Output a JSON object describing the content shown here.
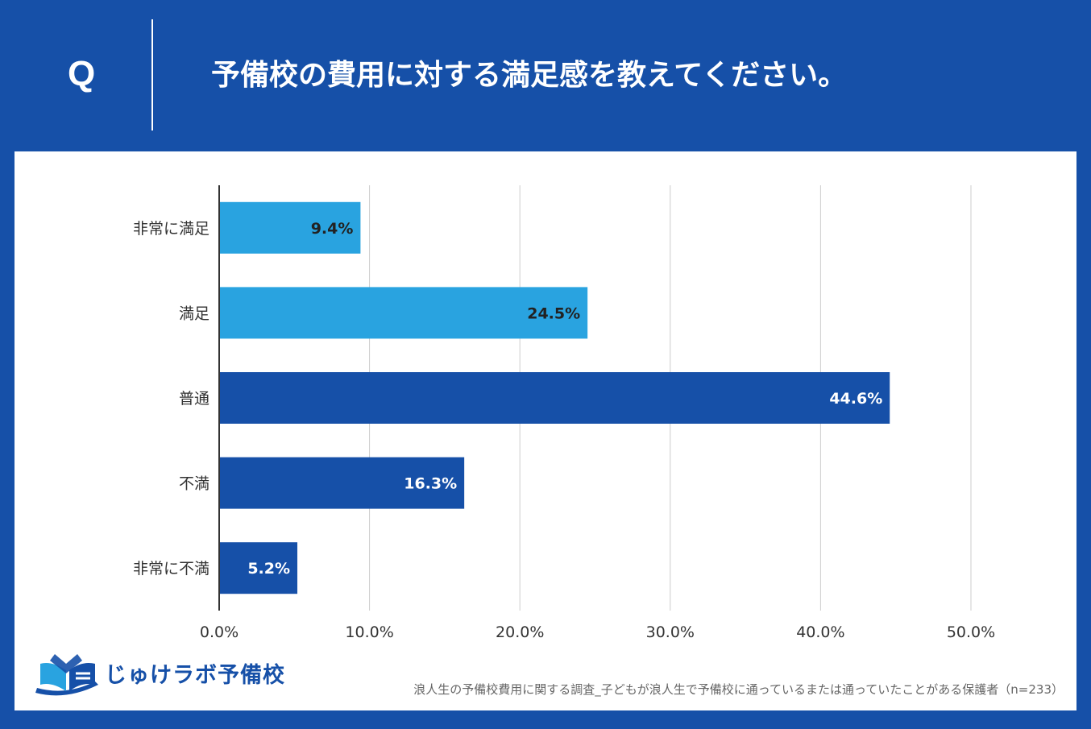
{
  "header": {
    "q_label": "Q",
    "question": "予備校の費用に対する満足感を教えてください。"
  },
  "chart_data": {
    "type": "bar",
    "orientation": "horizontal",
    "categories": [
      "非常に満足",
      "満足",
      "普通",
      "不満",
      "非常に不満"
    ],
    "values": [
      9.4,
      24.5,
      44.6,
      16.3,
      5.2
    ],
    "value_labels": [
      "9.4%",
      "24.5%",
      "44.6%",
      "16.3%",
      "5.2%"
    ],
    "bar_colors": [
      "#29a3e0",
      "#29a3e0",
      "#1650a8",
      "#1650a8",
      "#1650a8"
    ],
    "label_colors": [
      "#222222",
      "#222222",
      "#ffffff",
      "#ffffff",
      "#ffffff"
    ],
    "xlim": [
      0,
      50
    ],
    "x_ticks": [
      0,
      10,
      20,
      30,
      40,
      50
    ],
    "x_tick_labels": [
      "0.0%",
      "10.0%",
      "20.0%",
      "30.0%",
      "40.0%",
      "50.0%"
    ],
    "grid": true,
    "title": "",
    "xlabel": "",
    "ylabel": ""
  },
  "footer": {
    "logo_text": "じゅけラボ予備校",
    "source": "浪人生の予備校費用に関する調査_子どもが浪人生で予備校に通っているまたは通っていたことがある保護者（n=233）"
  },
  "colors": {
    "brand": "#1650a8",
    "light_bar": "#29a3e0",
    "grid": "#cccccc",
    "axis": "#333333"
  }
}
